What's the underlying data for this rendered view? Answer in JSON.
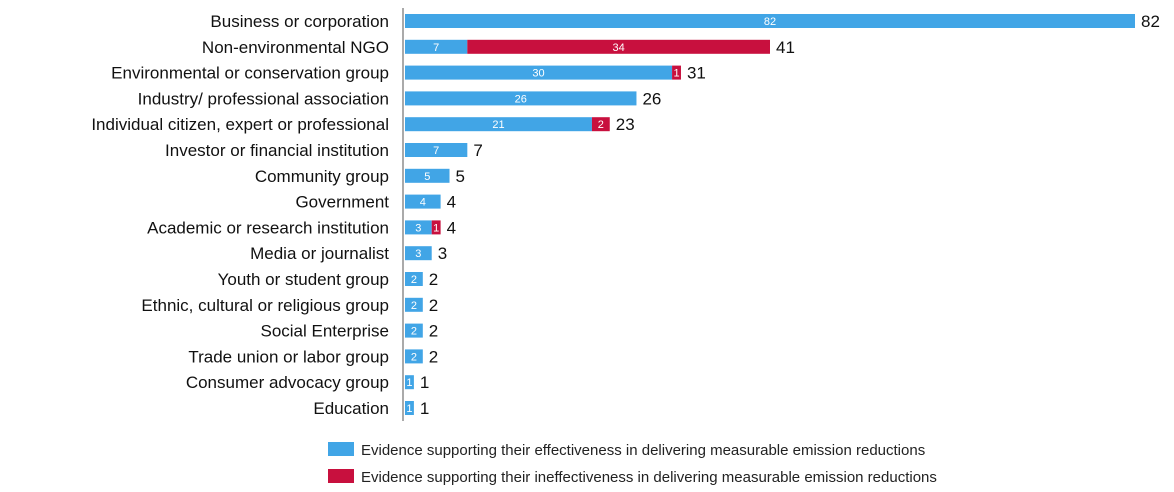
{
  "chart_data": {
    "type": "bar",
    "orientation": "horizontal",
    "stacked": true,
    "categories": [
      "Business or corporation",
      "Non-environmental NGO",
      "Environmental or conservation group",
      "Industry/ professional association",
      "Individual citizen, expert or professional",
      "Investor or financial institution",
      "Community group",
      "Government",
      "Academic or research institution",
      "Media or journalist",
      "Youth or student group",
      "Ethnic, cultural or religious group",
      "Social Enterprise",
      "Trade union or labor group",
      "Consumer advocacy group",
      "Education"
    ],
    "series": [
      {
        "name": "Evidence supporting their effectiveness in delivering measurable emission reductions",
        "color": "#41a5e6",
        "values": [
          82,
          7,
          30,
          26,
          21,
          7,
          5,
          4,
          3,
          3,
          2,
          2,
          2,
          2,
          1,
          1
        ]
      },
      {
        "name": "Evidence supporting their ineffectiveness in delivering measurable emission reductions",
        "color": "#c8103e",
        "values": [
          0,
          34,
          1,
          0,
          2,
          0,
          0,
          0,
          1,
          0,
          0,
          0,
          0,
          0,
          0,
          0
        ]
      }
    ],
    "totals": [
      82,
      41,
      31,
      26,
      23,
      7,
      5,
      4,
      4,
      3,
      2,
      2,
      2,
      2,
      1,
      1
    ],
    "xlim": [
      0,
      82
    ],
    "grid": false,
    "legend_position": "bottom"
  }
}
